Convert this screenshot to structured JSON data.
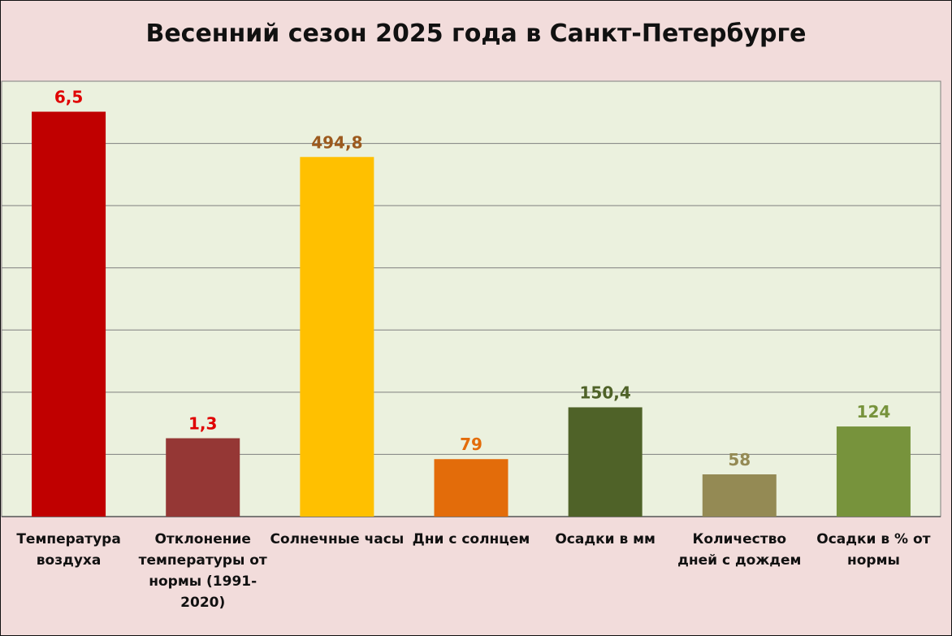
{
  "chart_data": {
    "type": "bar",
    "title": "Весенний сезон 2025 года в Санкт-Петербурге",
    "xlabel": "",
    "ylabel": "",
    "grid": true,
    "legend": "none",
    "categories": [
      "Температура воздуха",
      "Отклонение температуры от нормы (1991-2020)",
      "Солнечные часы",
      "Дни с солнцем",
      "Осадки в мм",
      "Количество дней с дождем",
      "Осадки в % от нормы"
    ],
    "values": [
      6.5,
      1.3,
      494.8,
      79,
      150.4,
      58,
      124
    ],
    "value_labels": [
      "6,5",
      "1,3",
      "494,8",
      "79",
      "150,4",
      "58",
      "124"
    ],
    "bar_colors": [
      "#c00000",
      "#953735",
      "#ffc000",
      "#e36c0a",
      "#4f6228",
      "#948a54",
      "#77933c"
    ],
    "label_colors": [
      "#e00000",
      "#e00000",
      "#9c5a1e",
      "#e36c0a",
      "#4f6228",
      "#948a54",
      "#77933c"
    ],
    "bar_fill_fraction": [
      0.93,
      0.18,
      0.826,
      0.132,
      0.251,
      0.097,
      0.207
    ]
  }
}
